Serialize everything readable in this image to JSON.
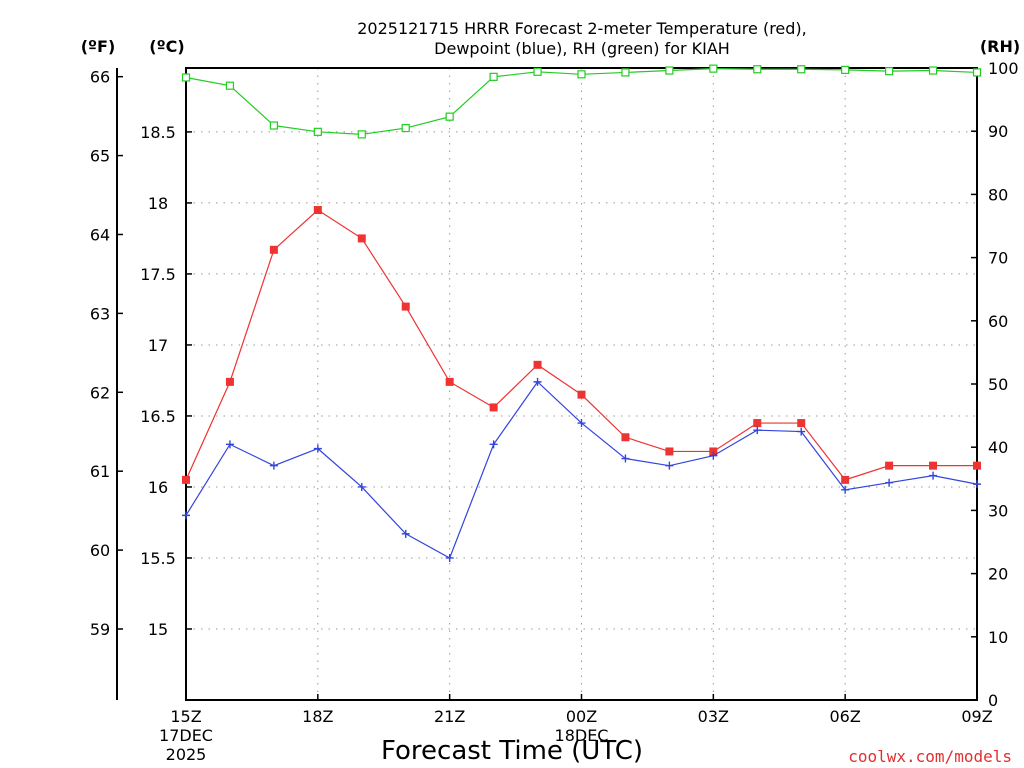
{
  "chart_data": {
    "type": "line",
    "title_line1": "2025121715 HRRR Forecast 2-meter Temperature (red),",
    "title_line2": "Dewpoint (blue), RH (green) for KIAH",
    "xlabel": "Forecast Time (UTC)",
    "credit": "coolwx.com/models",
    "units": {
      "fahrenheit": "(ºF)",
      "celsius": "(ºC)",
      "rh": "(RH)"
    },
    "hours": [
      0,
      1,
      2,
      3,
      4,
      5,
      6,
      7,
      8,
      9,
      10,
      11,
      12,
      13,
      14,
      15,
      16,
      17,
      18
    ],
    "x_ticks": [
      {
        "hour": 0,
        "label": "15Z",
        "sub1": "17DEC",
        "sub2": "2025"
      },
      {
        "hour": 3,
        "label": "18Z",
        "sub1": "",
        "sub2": ""
      },
      {
        "hour": 6,
        "label": "21Z",
        "sub1": "",
        "sub2": ""
      },
      {
        "hour": 9,
        "label": "00Z",
        "sub1": "18DEC",
        "sub2": ""
      },
      {
        "hour": 12,
        "label": "03Z",
        "sub1": "",
        "sub2": ""
      },
      {
        "hour": 15,
        "label": "06Z",
        "sub1": "",
        "sub2": ""
      },
      {
        "hour": 18,
        "label": "09Z",
        "sub1": "",
        "sub2": ""
      }
    ],
    "celsius_range": [
      14.5,
      18.95
    ],
    "celsius_ticks": [
      "15",
      "15.5",
      "16",
      "16.5",
      "17",
      "17.5",
      "18",
      "18.5"
    ],
    "fahrenheit_ticks": [
      "59",
      "60",
      "61",
      "62",
      "63",
      "64",
      "65",
      "66"
    ],
    "rh_range": [
      0,
      100
    ],
    "rh_ticks": [
      "0",
      "10",
      "20",
      "30",
      "40",
      "50",
      "60",
      "70",
      "80",
      "90",
      "100"
    ],
    "series": [
      {
        "name": "Temperature",
        "color": "#ee3333",
        "marker": "filled-square",
        "axis": "celsius",
        "values": [
          16.05,
          16.74,
          17.67,
          17.95,
          17.75,
          17.27,
          16.74,
          16.56,
          16.86,
          16.65,
          16.35,
          16.25,
          16.25,
          16.45,
          16.45,
          16.05,
          16.15,
          16.15,
          16.15
        ]
      },
      {
        "name": "Dewpoint",
        "color": "#3344dd",
        "marker": "plus",
        "axis": "celsius",
        "values": [
          15.8,
          16.3,
          16.15,
          16.27,
          16.0,
          15.67,
          15.5,
          16.3,
          16.74,
          16.45,
          16.2,
          16.15,
          16.22,
          16.4,
          16.39,
          15.98,
          16.03,
          16.08,
          16.02
        ]
      },
      {
        "name": "RH",
        "color": "#22cc22",
        "marker": "open-square",
        "axis": "rh",
        "values": [
          98.5,
          97.2,
          90.9,
          89.9,
          89.5,
          90.5,
          92.3,
          98.6,
          99.4,
          99.0,
          99.3,
          99.6,
          99.9,
          99.8,
          99.8,
          99.7,
          99.5,
          99.6,
          99.3
        ]
      }
    ]
  }
}
